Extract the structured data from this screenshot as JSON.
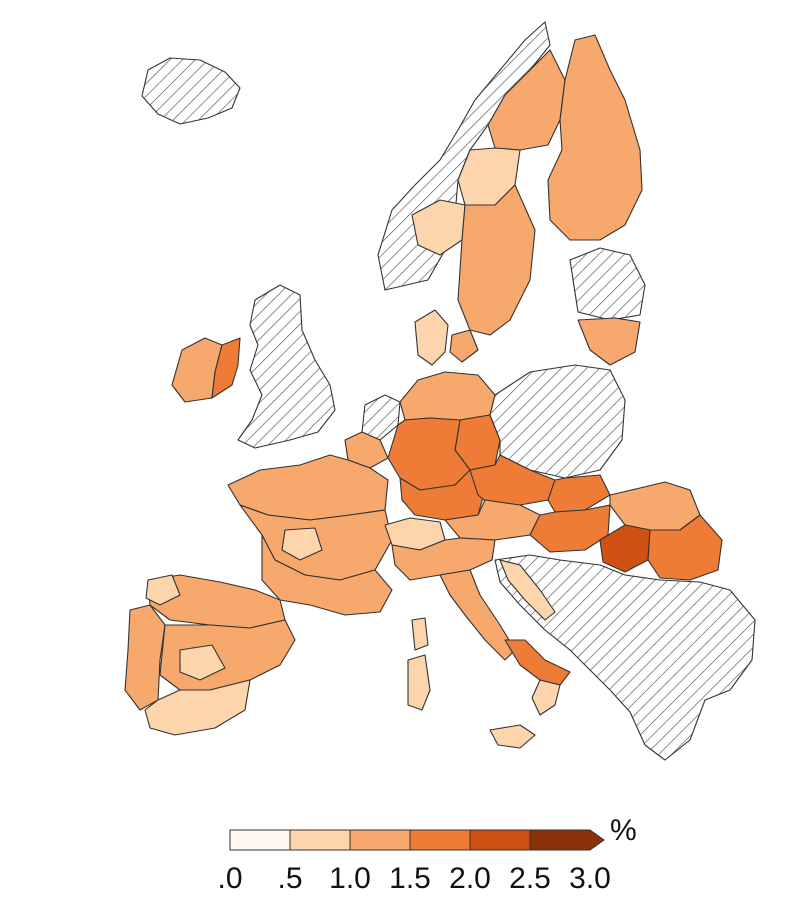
{
  "legend": {
    "unit": "%",
    "ticks": [
      ".0",
      ".5",
      "1.0",
      "1.5",
      "2.0",
      "2.5",
      "3.0"
    ],
    "colors": [
      "#fff8f0",
      "#fdd5ad",
      "#f6a86d",
      "#ee7c36",
      "#cf5212",
      "#8a3208"
    ],
    "nodata_pattern": "diagonal-hatch"
  },
  "colors": {
    "outline": "#333333",
    "hatch": "#444444",
    "class_0": "#fff8f0",
    "class_05": "#fdd5ad",
    "class_10": "#f6a86d",
    "class_15": "#ee7c36",
    "class_20": "#cf5212",
    "class_25": "#8a3208"
  }
}
